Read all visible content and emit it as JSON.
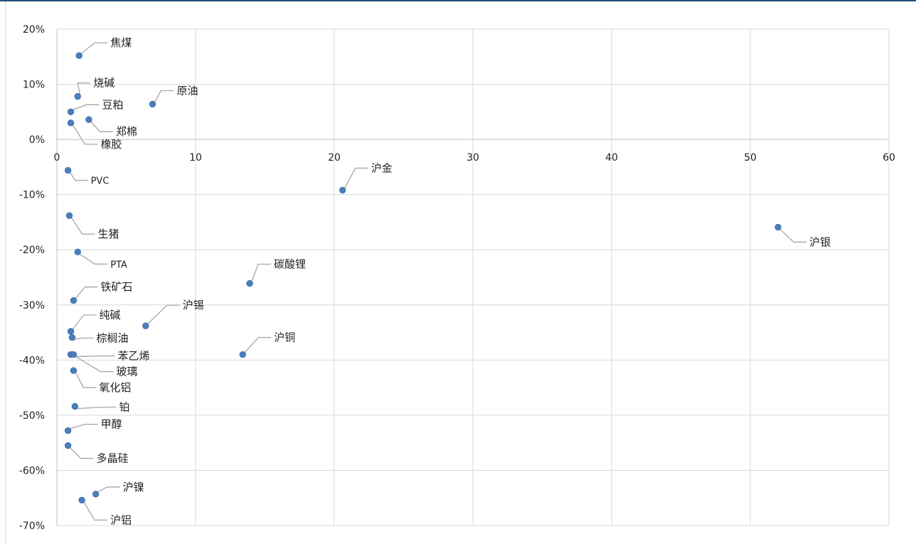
{
  "chart_data": {
    "type": "scatter",
    "title": "",
    "xlabel": "",
    "ylabel": "",
    "xlim": [
      0,
      60
    ],
    "ylim": [
      -70,
      20
    ],
    "x_ticks": [
      0,
      10,
      20,
      30,
      40,
      50,
      60
    ],
    "y_ticks": [
      20,
      10,
      0,
      -10,
      -20,
      -30,
      -40,
      -50,
      -60,
      -70
    ],
    "y_tick_format": "percent",
    "grid": true,
    "legend": "none",
    "marker_color": "#4a7ebb",
    "grid_color": "#d9d9d9",
    "axis_color": "#bfbfbf",
    "leader_color": "#a6a6a6",
    "points": [
      {
        "label": "焦煤",
        "x": 1.6,
        "y": 15.2
      },
      {
        "label": "烧碱",
        "x": 1.5,
        "y": 7.8
      },
      {
        "label": "原油",
        "x": 6.9,
        "y": 6.4
      },
      {
        "label": "豆粕",
        "x": 1.0,
        "y": 5.0
      },
      {
        "label": "郑棉",
        "x": 2.3,
        "y": 3.6
      },
      {
        "label": "橡胶",
        "x": 1.0,
        "y": 3.0
      },
      {
        "label": "PVC",
        "x": 0.8,
        "y": -5.6
      },
      {
        "label": "沪金",
        "x": 20.6,
        "y": -9.2
      },
      {
        "label": "生猪",
        "x": 0.9,
        "y": -13.8
      },
      {
        "label": "沪银",
        "x": 52.0,
        "y": -15.9
      },
      {
        "label": "PTA",
        "x": 1.5,
        "y": -20.4
      },
      {
        "label": "碳酸锂",
        "x": 13.9,
        "y": -26.1
      },
      {
        "label": "铁矿石",
        "x": 1.2,
        "y": -29.2
      },
      {
        "label": "沪锡",
        "x": 6.4,
        "y": -33.8
      },
      {
        "label": "纯碱",
        "x": 1.0,
        "y": -34.8
      },
      {
        "label": "棕榈油",
        "x": 1.1,
        "y": -35.9
      },
      {
        "label": "沪铜",
        "x": 13.4,
        "y": -39.0
      },
      {
        "label": "苯乙烯",
        "x": 1.0,
        "y": -39.0
      },
      {
        "label": "玻璃",
        "x": 1.2,
        "y": -39.0
      },
      {
        "label": "氧化铝",
        "x": 1.2,
        "y": -41.9
      },
      {
        "label": "铂",
        "x": 1.3,
        "y": -48.4
      },
      {
        "label": "甲醇",
        "x": 0.8,
        "y": -52.8
      },
      {
        "label": "多晶硅",
        "x": 0.8,
        "y": -55.5
      },
      {
        "label": "沪镍",
        "x": 2.8,
        "y": -64.3
      },
      {
        "label": "沪铝",
        "x": 1.8,
        "y": -65.4
      }
    ]
  }
}
